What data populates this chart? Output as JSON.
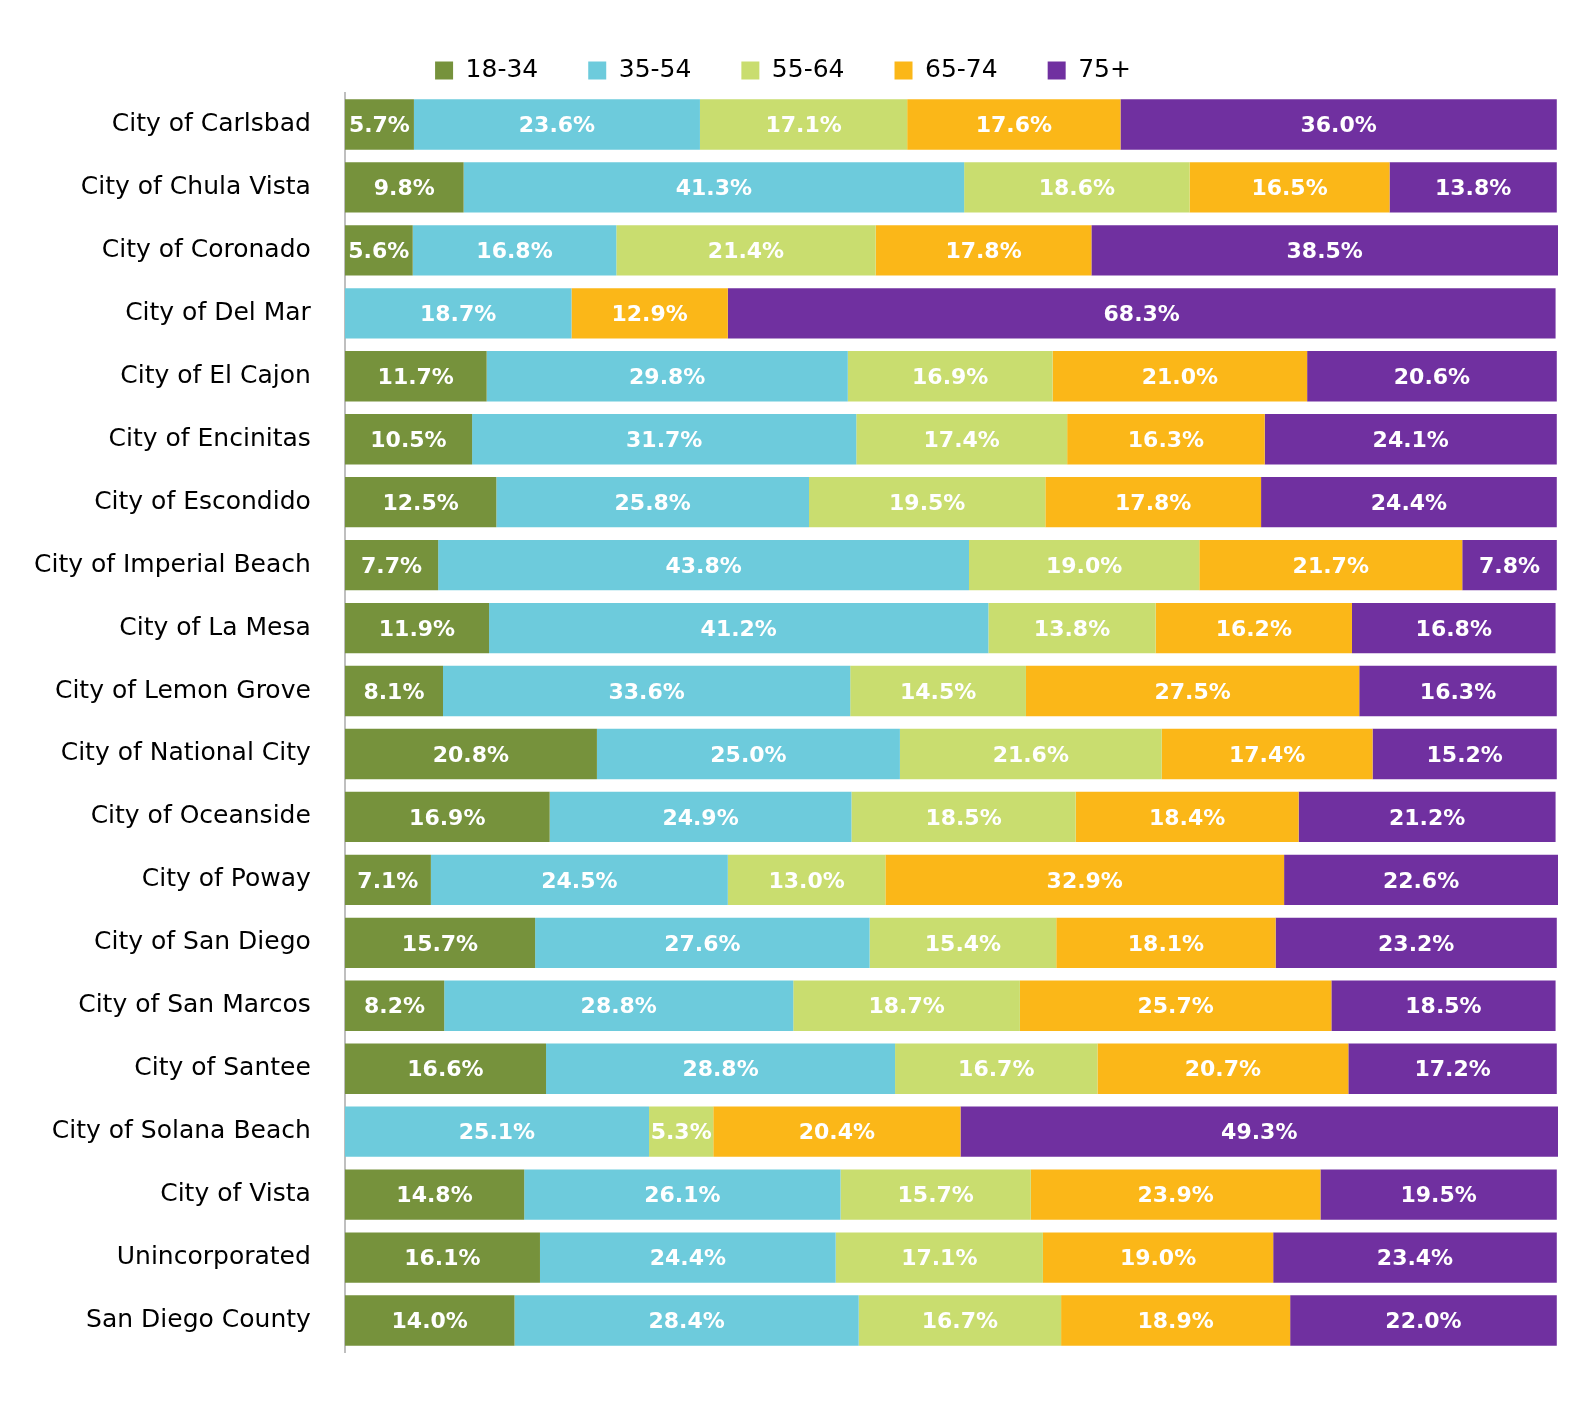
{
  "chart_data": {
    "type": "bar",
    "orientation": "horizontal",
    "stacked": true,
    "legend": "top",
    "tick_labels": "y",
    "categories": [
      "City of Carlsbad",
      "City of Chula Vista",
      "City of Coronado",
      "City of Del Mar",
      "City of El Cajon",
      "City of Encinitas",
      "City of Escondido",
      "City of Imperial Beach",
      "City of La Mesa",
      "City of Lemon Grove",
      "City of National City",
      "City of Oceanside",
      "City of Poway",
      "City of San Diego",
      "City of San Marcos",
      "City of Santee",
      "City of Solana Beach",
      "City of Vista",
      "Unincorporated",
      "San Diego County"
    ],
    "series": [
      {
        "name": "18-34",
        "color": "#76923c",
        "values": [
          5.7,
          9.8,
          5.6,
          null,
          11.7,
          10.5,
          12.5,
          7.7,
          11.9,
          8.1,
          20.8,
          16.9,
          7.1,
          15.7,
          8.2,
          16.6,
          null,
          14.8,
          16.1,
          14.0
        ],
        "value_labels": [
          "5.7%",
          "9.8%",
          "5.6%",
          null,
          "11.7%",
          "10.5%",
          "12.5%",
          "7.7%",
          "11.9%",
          "8.1%",
          "20.8%",
          "16.9%",
          "7.1%",
          "15.7%",
          "8.2%",
          "16.6%",
          null,
          "14.8%",
          "16.1%",
          "14.0%"
        ]
      },
      {
        "name": "35-54",
        "color": "#6dcbdc",
        "values": [
          23.6,
          41.3,
          16.8,
          18.7,
          29.8,
          31.7,
          25.8,
          43.8,
          41.2,
          33.6,
          25.0,
          24.9,
          24.5,
          27.6,
          28.8,
          28.8,
          25.1,
          26.1,
          24.4,
          28.4
        ],
        "value_labels": [
          "23.6%",
          "41.3%",
          "16.8%",
          "18.7%",
          "29.8%",
          "31.7%",
          "25.8%",
          "43.8%",
          "41.2%",
          "33.6%",
          "25.0%",
          "24.9%",
          "24.5%",
          "27.6%",
          "28.8%",
          "28.8%",
          "25.1%",
          "26.1%",
          "24.4%",
          "28.4%"
        ]
      },
      {
        "name": "55-64",
        "color": "#c9dd6f",
        "values": [
          17.1,
          18.6,
          21.4,
          null,
          16.9,
          17.4,
          19.5,
          19.0,
          13.8,
          14.5,
          21.6,
          18.5,
          13.0,
          15.4,
          18.7,
          16.7,
          5.3,
          15.7,
          17.1,
          16.7
        ],
        "value_labels": [
          "17.1%",
          "18.6%",
          "21.4%",
          null,
          "16.9%",
          "17.4%",
          "19.5%",
          "19.0%",
          "13.8%",
          "14.5%",
          "21.6%",
          "18.5%",
          "13.0%",
          "15.4%",
          "18.7%",
          "16.7%",
          "5.3%",
          "15.7%",
          "17.1%",
          "16.7%"
        ]
      },
      {
        "name": "65-74",
        "color": "#fbb718",
        "values": [
          17.6,
          16.5,
          17.8,
          12.9,
          21.0,
          16.3,
          17.8,
          21.7,
          16.2,
          27.5,
          17.4,
          18.4,
          32.9,
          18.1,
          25.7,
          20.7,
          20.4,
          23.9,
          19.0,
          18.9
        ],
        "value_labels": [
          "17.6%",
          "16.5%",
          "17.8%",
          "12.9%",
          "21.0%",
          "16.3%",
          "17.8%",
          "21.7%",
          "16.2%",
          "27.5%",
          "17.4%",
          "18.4%",
          "32.9%",
          "18.1%",
          "25.7%",
          "20.7%",
          "20.4%",
          "23.9%",
          "19.0%",
          "18.9%"
        ]
      },
      {
        "name": "75+",
        "color": "#7030a0",
        "values": [
          36.0,
          13.8,
          38.5,
          68.3,
          20.6,
          24.1,
          24.4,
          7.8,
          16.8,
          16.3,
          15.2,
          21.2,
          22.6,
          23.2,
          18.5,
          17.2,
          49.3,
          19.5,
          23.4,
          22.0
        ],
        "value_labels": [
          "36.0%",
          "13.8%",
          "38.5%",
          "68.3%",
          "20.6%",
          "24.1%",
          "24.4%",
          "7.8%",
          "16.8%",
          "16.3%",
          "15.2%",
          "21.2%",
          "22.6%",
          "23.2%",
          "18.5%",
          "17.2%",
          "49.3%",
          "19.5%",
          "23.4%",
          "22.0%"
        ]
      }
    ]
  }
}
